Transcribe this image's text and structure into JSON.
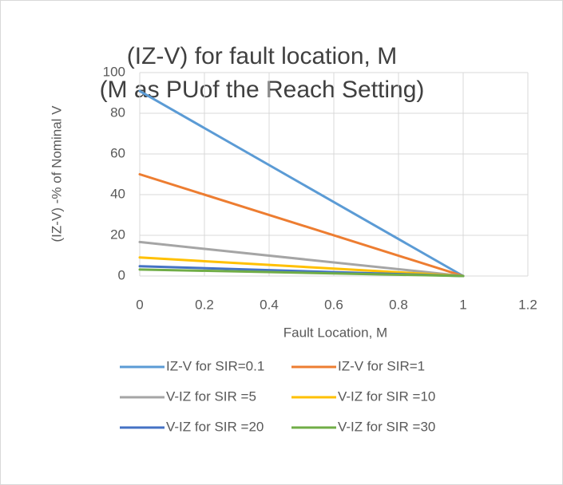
{
  "chart_data": {
    "type": "line",
    "title": "(IZ-V) for  fault location, M",
    "subtitle": "(M as PUof the Reach Setting)",
    "x_label": "Fault Location, M",
    "y_label": "(IZ-V) -% of Nominal V",
    "x": [
      0,
      1
    ],
    "series": [
      {
        "name": "IZ-V for SIR=0.1",
        "color": "#5b9bd5",
        "values": [
          90.9,
          0
        ]
      },
      {
        "name": "IZ-V for SIR=1",
        "color": "#ed7d31",
        "values": [
          50,
          0
        ]
      },
      {
        "name": "V-IZ for SIR =5",
        "color": "#a5a5a5",
        "values": [
          16.7,
          0
        ]
      },
      {
        "name": "V-IZ for SIR =10",
        "color": "#ffc000",
        "values": [
          9.1,
          0
        ]
      },
      {
        "name": "V-IZ for SIR =20",
        "color": "#4472c4",
        "values": [
          4.8,
          0
        ]
      },
      {
        "name": "V-IZ for SIR =30",
        "color": "#70ad47",
        "values": [
          3.2,
          0
        ]
      }
    ],
    "xlim": [
      0,
      1.2
    ],
    "xticks": [
      0,
      0.2,
      0.4,
      0.6,
      0.8,
      1,
      1.2
    ],
    "ylim": [
      0,
      100
    ],
    "yticks": [
      0,
      20,
      40,
      60,
      80,
      100
    ],
    "grid": true,
    "legend": "bottom"
  }
}
